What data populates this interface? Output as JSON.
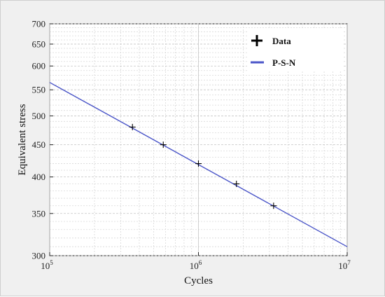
{
  "chart_data": {
    "type": "line",
    "xlabel": "Cycles",
    "ylabel": "Equivalent stress",
    "xscale": "log",
    "yscale": "log",
    "xlim": [
      100000,
      10000000
    ],
    "ylim": [
      300,
      700
    ],
    "grid": true,
    "x_tick_labels": [
      {
        "value": 100000,
        "base": "10",
        "exp": "5"
      },
      {
        "value": 1000000,
        "base": "10",
        "exp": "6"
      },
      {
        "value": 10000000,
        "base": "10",
        "exp": "7"
      }
    ],
    "y_ticks": [
      300,
      350,
      400,
      450,
      500,
      550,
      600,
      650,
      700
    ],
    "y_tick_labels": [
      "300",
      "350",
      "400",
      "450",
      "500",
      "550",
      "600",
      "650",
      "700"
    ],
    "legend": {
      "placement": "top-right",
      "entries": [
        {
          "label": "Data",
          "marker": "plus"
        },
        {
          "label": "P-S-N",
          "marker": "line"
        }
      ]
    },
    "series": [
      {
        "kind": "scatter",
        "marker": "plus",
        "color": "#000000",
        "points": [
          {
            "x": 360000,
            "y": 480
          },
          {
            "x": 580000,
            "y": 450
          },
          {
            "x": 1000000,
            "y": 420
          },
          {
            "x": 1800000,
            "y": 390
          },
          {
            "x": 3200000,
            "y": 360
          }
        ]
      },
      {
        "kind": "line",
        "color": "#4a55c8",
        "points": [
          {
            "x": 100000,
            "y": 565
          },
          {
            "x": 10000000,
            "y": 310
          }
        ]
      }
    ]
  }
}
